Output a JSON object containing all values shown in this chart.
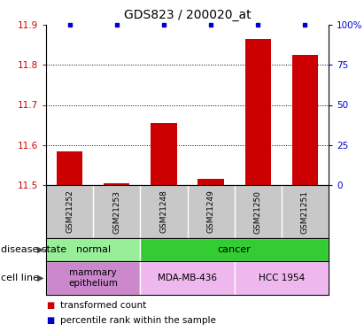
{
  "title": "GDS823 / 200020_at",
  "samples": [
    "GSM21252",
    "GSM21253",
    "GSM21248",
    "GSM21249",
    "GSM21250",
    "GSM21251"
  ],
  "red_values": [
    11.585,
    11.505,
    11.655,
    11.515,
    11.865,
    11.825
  ],
  "blue_percentiles": [
    100,
    100,
    100,
    100,
    100,
    100
  ],
  "ylim_left": [
    11.5,
    11.9
  ],
  "ylim_right": [
    0,
    100
  ],
  "left_ticks": [
    11.5,
    11.6,
    11.7,
    11.8,
    11.9
  ],
  "right_ticks": [
    0,
    25,
    50,
    75,
    100
  ],
  "right_tick_labels": [
    "0",
    "25",
    "50",
    "75",
    "100%"
  ],
  "dotted_lines": [
    11.6,
    11.7,
    11.8
  ],
  "disease_state": [
    {
      "label": "normal",
      "start": 0,
      "end": 2,
      "color": "#99EE99"
    },
    {
      "label": "cancer",
      "start": 2,
      "end": 6,
      "color": "#33CC33"
    }
  ],
  "cell_line": [
    {
      "label": "mammary\nepithelium",
      "start": 0,
      "end": 2,
      "color": "#CC88CC"
    },
    {
      "label": "MDA-MB-436",
      "start": 2,
      "end": 4,
      "color": "#EEB8EE"
    },
    {
      "label": "HCC 1954",
      "start": 4,
      "end": 6,
      "color": "#EEB8EE"
    }
  ],
  "sample_bg": "#C8C8C8",
  "bar_color": "#CC0000",
  "dot_color": "#0000CC",
  "left_tick_color": "#CC0000",
  "right_tick_color": "#0000CC",
  "title_fontsize": 10,
  "tick_fontsize": 7.5,
  "sample_fontsize": 6.5,
  "row_fontsize": 8,
  "legend_fontsize": 7.5,
  "side_label_fontsize": 8
}
